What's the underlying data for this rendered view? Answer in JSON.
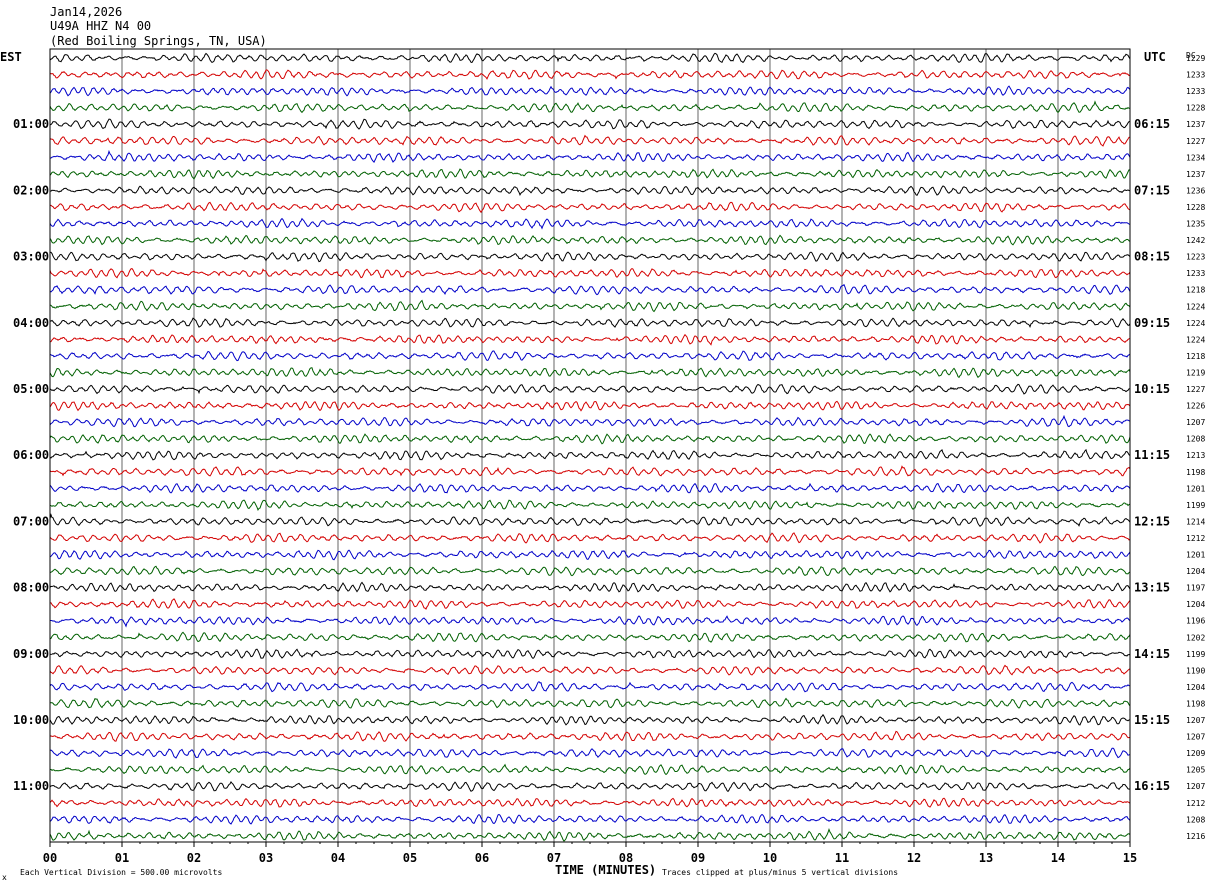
{
  "header": {
    "date": "Jan14,2026",
    "station": "U49A HHZ N4 00",
    "location": "(Red Boiling Springs, TN, USA)"
  },
  "left_tz": "EST",
  "right_tz": "UTC",
  "dc_label": "DC",
  "chart_data": {
    "type": "line",
    "title": "U49A HHZ N4 00",
    "xlabel": "TIME (MINUTES)",
    "xlim": [
      0,
      15
    ],
    "x_ticks": [
      "00",
      "01",
      "02",
      "03",
      "04",
      "05",
      "06",
      "07",
      "08",
      "09",
      "10",
      "11",
      "12",
      "13",
      "14",
      "15"
    ],
    "trace_colors": [
      "#000000",
      "#d40000",
      "#0000c8",
      "#006000"
    ],
    "rows": [
      {
        "est": "",
        "utc": "",
        "dc": "1229"
      },
      {
        "est": "",
        "utc": "",
        "dc": "1233"
      },
      {
        "est": "",
        "utc": "",
        "dc": "1233"
      },
      {
        "est": "",
        "utc": "",
        "dc": "1228"
      },
      {
        "est": "01:00",
        "utc": "06:15",
        "dc": "1237"
      },
      {
        "est": "",
        "utc": "",
        "dc": "1227"
      },
      {
        "est": "",
        "utc": "",
        "dc": "1234"
      },
      {
        "est": "",
        "utc": "",
        "dc": "1237"
      },
      {
        "est": "02:00",
        "utc": "07:15",
        "dc": "1236"
      },
      {
        "est": "",
        "utc": "",
        "dc": "1228"
      },
      {
        "est": "",
        "utc": "",
        "dc": "1235"
      },
      {
        "est": "",
        "utc": "",
        "dc": "1242"
      },
      {
        "est": "03:00",
        "utc": "08:15",
        "dc": "1223"
      },
      {
        "est": "",
        "utc": "",
        "dc": "1233"
      },
      {
        "est": "",
        "utc": "",
        "dc": "1218"
      },
      {
        "est": "",
        "utc": "",
        "dc": "1224"
      },
      {
        "est": "04:00",
        "utc": "09:15",
        "dc": "1224"
      },
      {
        "est": "",
        "utc": "",
        "dc": "1224"
      },
      {
        "est": "",
        "utc": "",
        "dc": "1218"
      },
      {
        "est": "",
        "utc": "",
        "dc": "1219"
      },
      {
        "est": "05:00",
        "utc": "10:15",
        "dc": "1227"
      },
      {
        "est": "",
        "utc": "",
        "dc": "1226"
      },
      {
        "est": "",
        "utc": "",
        "dc": "1207"
      },
      {
        "est": "",
        "utc": "",
        "dc": "1208"
      },
      {
        "est": "06:00",
        "utc": "11:15",
        "dc": "1213"
      },
      {
        "est": "",
        "utc": "",
        "dc": "1198"
      },
      {
        "est": "",
        "utc": "",
        "dc": "1201"
      },
      {
        "est": "",
        "utc": "",
        "dc": "1199"
      },
      {
        "est": "07:00",
        "utc": "12:15",
        "dc": "1214"
      },
      {
        "est": "",
        "utc": "",
        "dc": "1212"
      },
      {
        "est": "",
        "utc": "",
        "dc": "1201"
      },
      {
        "est": "",
        "utc": "",
        "dc": "1204"
      },
      {
        "est": "08:00",
        "utc": "13:15",
        "dc": "1197"
      },
      {
        "est": "",
        "utc": "",
        "dc": "1204"
      },
      {
        "est": "",
        "utc": "",
        "dc": "1196"
      },
      {
        "est": "",
        "utc": "",
        "dc": "1202"
      },
      {
        "est": "09:00",
        "utc": "14:15",
        "dc": "1199"
      },
      {
        "est": "",
        "utc": "",
        "dc": "1190"
      },
      {
        "est": "",
        "utc": "",
        "dc": "1204"
      },
      {
        "est": "",
        "utc": "",
        "dc": "1198"
      },
      {
        "est": "10:00",
        "utc": "15:15",
        "dc": "1207"
      },
      {
        "est": "",
        "utc": "",
        "dc": "1207"
      },
      {
        "est": "",
        "utc": "",
        "dc": "1209"
      },
      {
        "est": "",
        "utc": "",
        "dc": "1205"
      },
      {
        "est": "11:00",
        "utc": "16:15",
        "dc": "1207"
      },
      {
        "est": "",
        "utc": "",
        "dc": "1212"
      },
      {
        "est": "",
        "utc": "",
        "dc": "1208"
      },
      {
        "est": "",
        "utc": "",
        "dc": "1216"
      }
    ]
  },
  "footer": {
    "scale_note": "Each Vertical Division =  500.00 microvolts",
    "clip_note": "Traces clipped at plus/minus 5 vertical divisions",
    "corner_mark": "x"
  }
}
